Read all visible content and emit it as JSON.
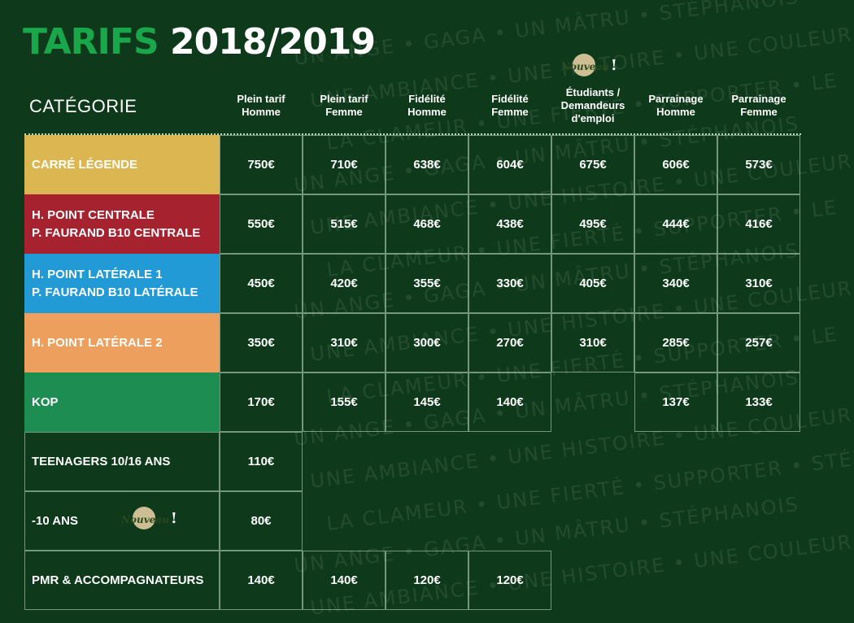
{
  "title": {
    "part1": "TARIFS",
    "part2": "2018/2019"
  },
  "category_header": "CATÉGORIE",
  "column_headers": [
    [
      "Plein tarif",
      "Homme"
    ],
    [
      "Plein tarif",
      "Femme"
    ],
    [
      "Fidélité",
      "Homme"
    ],
    [
      "Fidélité",
      "Femme"
    ],
    [
      "Étudiants /",
      "Demandeurs",
      "d'emploi"
    ],
    [
      "Parrainage",
      "Homme"
    ],
    [
      "Parrainage",
      "Femme"
    ]
  ],
  "badge_text": "Nouveau",
  "badge_mark": "!",
  "categories": [
    {
      "lines": [
        "CARRÉ LÉGENDE"
      ],
      "color": "#dbb651",
      "prices": [
        "750€",
        "710€",
        "638€",
        "604€",
        "675€",
        "606€",
        "573€"
      ]
    },
    {
      "lines": [
        "H. POINT CENTRALE",
        "P. FAURAND B10 CENTRALE"
      ],
      "color": "#a7222f",
      "prices": [
        "550€",
        "515€",
        "468€",
        "438€",
        "495€",
        "444€",
        "416€"
      ]
    },
    {
      "lines": [
        "H. POINT LATÉRALE 1",
        "P. FAURAND B10 LATÉRALE"
      ],
      "color": "#219ad6",
      "prices": [
        "450€",
        "420€",
        "355€",
        "330€",
        "405€",
        "340€",
        "310€"
      ]
    },
    {
      "lines": [
        "H. POINT LATÉRALE 2"
      ],
      "color": "#eda05d",
      "prices": [
        "350€",
        "310€",
        "300€",
        "270€",
        "310€",
        "285€",
        "257€"
      ]
    },
    {
      "lines": [
        "KOP"
      ],
      "color": "#1d8d52",
      "prices": [
        "170€",
        "155€",
        "145€",
        "140€",
        null,
        "137€",
        "133€"
      ]
    },
    {
      "lines": [
        "TEENAGERS 10/16 ANS"
      ],
      "color": null,
      "prices": [
        "110€"
      ]
    },
    {
      "lines": [
        "-10 ANS"
      ],
      "color": null,
      "prices": [
        "80€"
      ]
    },
    {
      "lines": [
        "PMR & ACCOMPAGNATEURS"
      ],
      "color": null,
      "prices": [
        "140€",
        "140€",
        "120€",
        "120€"
      ]
    }
  ],
  "background_words": [
    "UN ANGE  •  GAGA  •  UN MÂTRU  •  STÉPHANOIS",
    "UNE AMBIANCE  •  UNE HISTOIRE  •  UNE COULEUR",
    "LA CLAMEUR  •  UNE FIERTÉ  •  SUPPORTER  •  LE",
    "UN ANGE  •  GAGA  •  UN MÂTRU  •  STÉPHANOIS",
    "UNE AMBIANCE  •  UNE HISTOIRE  •  UNE COULEUR",
    "LA CLAMEUR  •  UNE FIERTÉ  •  SUPPORTER  •  LE",
    "UN ANGE  •  GAGA  •  UN MÂTRU  •  STÉPHANOIS",
    "UNE AMBIANCE  •  UNE HISTOIRE  •  UNE COULEUR",
    "LA CLAMEUR  •  UNE FIERTÉ  •  SUPPORTER  •  LE",
    "UN ANGE  •  GAGA  •  UN MÂTRU  •  STÉPHANOIS",
    "UNE AMBIANCE  •  UNE HISTOIRE  •  UNE COULEUR",
    "LA CLAMEUR  •  UNE FIERTÉ  •  SUPPORTER  •  STÉPHANOIS",
    "UN ANGE  •  GAGA  •  UN MÂTRU  •  STÉPHANOIS",
    "UNE AMBIANCE  •  UNE HISTOIRE  •  UNE COULEUR"
  ]
}
